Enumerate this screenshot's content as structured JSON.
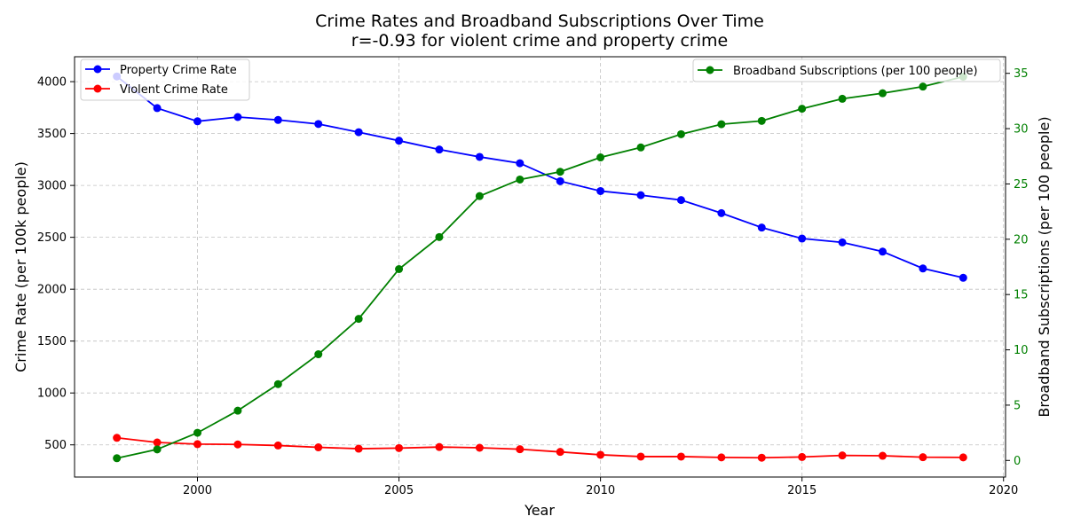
{
  "chart_data": {
    "type": "line",
    "title": "Crime Rates and Broadband Subscriptions Over Time",
    "subtitle": "r=-0.93 for violent crime and property crime",
    "xlabel": "Year",
    "ylabel_left": "Crime Rate (per 100k people)",
    "ylabel_right": "Broadband Subscriptions (per 100 people)",
    "x": [
      1998,
      1999,
      2000,
      2001,
      2002,
      2003,
      2004,
      2005,
      2006,
      2007,
      2008,
      2009,
      2010,
      2011,
      2012,
      2013,
      2014,
      2015,
      2016,
      2017,
      2018,
      2019
    ],
    "x_ticks": [
      "2000",
      "2005",
      "2010",
      "2015",
      "2020"
    ],
    "xlim": [
      1996.95,
      2020.05
    ],
    "ylim_left": [
      190,
      4240
    ],
    "ylim_right": [
      -1.5,
      36.5
    ],
    "yticks_left": [
      "500",
      "1000",
      "1500",
      "2000",
      "2500",
      "3000",
      "3500",
      "4000"
    ],
    "yticks_right": [
      "0",
      "5",
      "10",
      "15",
      "20",
      "25",
      "30",
      "35"
    ],
    "grid": true,
    "series": [
      {
        "name": "Property Crime Rate",
        "axis": "left",
        "color": "#0000ff",
        "values": [
          4050,
          3745,
          3618,
          3659,
          3631,
          3592,
          3513,
          3431,
          3346,
          3275,
          3214,
          3041,
          2946,
          2906,
          2859,
          2733,
          2594,
          2488,
          2451,
          2362,
          2200,
          2110
        ]
      },
      {
        "name": "Violent Crime Rate",
        "axis": "left",
        "color": "#ff0000",
        "values": [
          568,
          523,
          507,
          504,
          494,
          476,
          463,
          469,
          479,
          472,
          458,
          432,
          404,
          387,
          387,
          379,
          376,
          383,
          398,
          395,
          381,
          379
        ]
      },
      {
        "name": "Broadband Subscriptions (per 100 people)",
        "axis": "right",
        "color": "#008000",
        "values": [
          0.2,
          1.0,
          2.5,
          4.5,
          6.9,
          9.6,
          12.8,
          17.3,
          20.2,
          23.9,
          25.4,
          26.1,
          27.4,
          28.3,
          29.5,
          30.4,
          30.7,
          31.8,
          32.7,
          33.2,
          33.8,
          34.7
        ]
      }
    ],
    "legend_left": {
      "placement": "top-left",
      "entries": [
        "Property Crime Rate",
        "Violent Crime Rate"
      ]
    },
    "legend_right": {
      "placement": "top-right",
      "entries": [
        "Broadband Subscriptions (per 100 people)"
      ]
    }
  }
}
